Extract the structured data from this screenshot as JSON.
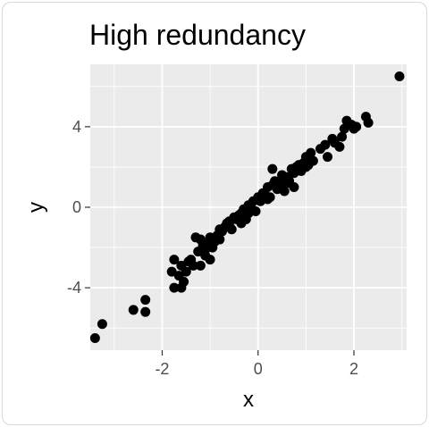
{
  "chart_data": {
    "type": "scatter",
    "title": "High redundancy",
    "xlabel": "x",
    "ylabel": "y",
    "xlim": [
      -3.5,
      3.1
    ],
    "ylim": [
      -7.1,
      7.1
    ],
    "x_ticks": [
      -2,
      0,
      2
    ],
    "x_tick_labels": [
      "-2",
      "0",
      "2"
    ],
    "y_ticks": [
      -4,
      0,
      4
    ],
    "y_tick_labels": [
      "-4",
      "0",
      "4"
    ],
    "grid": true,
    "legend": "none",
    "colors": {
      "panel": "#ebebeb",
      "grid_major": "#ffffff",
      "point": "#000000"
    },
    "series": [
      {
        "x": [
          -3.4,
          -3.25,
          -2.6,
          -2.35,
          -2.35,
          -1.8,
          -1.75,
          -1.75,
          -1.65,
          -1.6,
          -1.6,
          -1.55,
          -1.5,
          -1.45,
          -1.4,
          -1.35,
          -1.3,
          -1.25,
          -1.2,
          -1.2,
          -1.15,
          -1.1,
          -1.05,
          -1.0,
          -1.0,
          -0.95,
          -0.9,
          -0.85,
          -0.8,
          -0.75,
          -0.7,
          -0.65,
          -0.6,
          -0.55,
          -0.5,
          -0.45,
          -0.4,
          -0.35,
          -0.3,
          -0.25,
          -0.2,
          -0.15,
          -0.1,
          -0.05,
          0.0,
          0.05,
          0.1,
          0.15,
          0.2,
          0.25,
          0.3,
          0.35,
          0.4,
          0.45,
          0.5,
          0.55,
          0.6,
          0.65,
          0.7,
          0.75,
          0.8,
          0.85,
          0.9,
          0.95,
          1.0,
          1.05,
          1.1,
          1.15,
          1.3,
          1.4,
          1.45,
          1.55,
          1.6,
          1.7,
          1.75,
          1.8,
          1.85,
          1.95,
          2.0,
          2.05,
          2.25,
          2.3,
          2.95,
          -1.0,
          -0.6,
          -0.2,
          0.2,
          0.6,
          1.0,
          0.3,
          -0.8,
          0.75,
          -0.35,
          0.55,
          -1.1
        ],
        "y": [
          -6.5,
          -5.8,
          -5.1,
          -4.6,
          -5.2,
          -3.2,
          -2.6,
          -4.0,
          -3.4,
          -2.9,
          -4.0,
          -3.7,
          -3.2,
          -2.7,
          -2.6,
          -2.9,
          -1.5,
          -2.2,
          -1.6,
          -2.9,
          -1.9,
          -2.1,
          -1.8,
          -2.6,
          -1.5,
          -2.0,
          -1.7,
          -1.4,
          -1.1,
          -1.2,
          -1.0,
          -0.8,
          -0.7,
          -1.1,
          -0.5,
          -0.6,
          -0.4,
          -0.3,
          -0.1,
          -0.6,
          0.1,
          0.0,
          0.3,
          -0.2,
          0.5,
          0.3,
          0.7,
          0.6,
          1.0,
          0.5,
          1.1,
          1.3,
          0.9,
          1.2,
          1.6,
          1.4,
          1.5,
          1.3,
          1.9,
          1.7,
          2.0,
          2.1,
          1.8,
          2.2,
          2.5,
          2.1,
          2.7,
          2.3,
          2.9,
          3.1,
          2.5,
          3.4,
          3.2,
          3.0,
          3.5,
          3.9,
          4.3,
          4.1,
          3.9,
          4.0,
          4.5,
          4.2,
          6.5,
          -1.9,
          -0.9,
          -0.3,
          0.4,
          1.2,
          2.0,
          1.9,
          -1.6,
          1.0,
          -0.8,
          0.8,
          -2.4
        ]
      }
    ]
  }
}
